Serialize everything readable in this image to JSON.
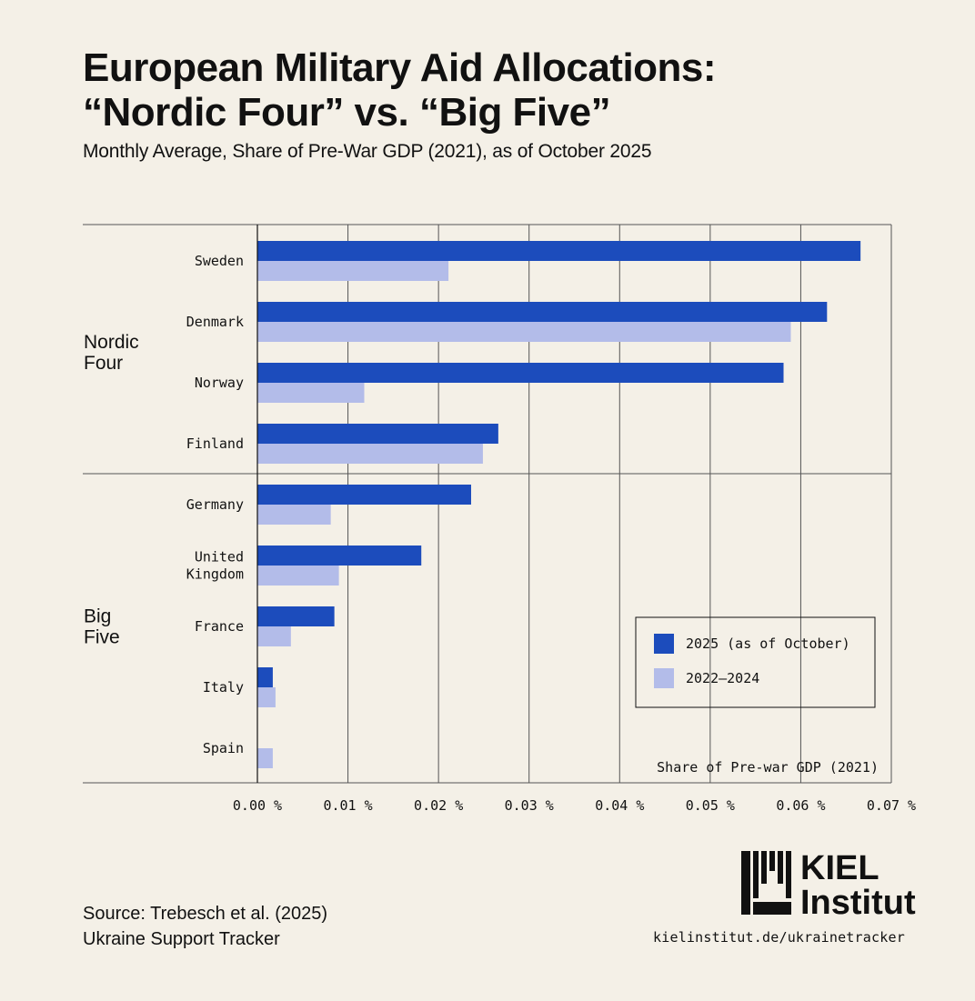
{
  "header": {
    "title_line1": "European Military Aid Allocations:",
    "title_line2": "“Nordic Four” vs. “Big Five”",
    "subtitle": "Monthly Average, Share of Pre-War GDP (2021), as of October 2025"
  },
  "chart_data": {
    "type": "bar",
    "orientation": "horizontal",
    "groups": [
      {
        "name": "Nordic Four",
        "label_lines": [
          "Nordic",
          "Four"
        ],
        "categories": [
          "Sweden",
          "Denmark",
          "Norway",
          "Finland"
        ]
      },
      {
        "name": "Big Five",
        "label_lines": [
          "Big",
          "Five"
        ],
        "categories": [
          "Germany",
          "United Kingdom",
          "France",
          "Italy",
          "Spain"
        ]
      }
    ],
    "categories": [
      "Sweden",
      "Denmark",
      "Norway",
      "Finland",
      "Germany",
      "United Kingdom",
      "France",
      "Italy",
      "Spain"
    ],
    "category_label_lines": [
      [
        "Sweden"
      ],
      [
        "Denmark"
      ],
      [
        "Norway"
      ],
      [
        "Finland"
      ],
      [
        "Germany"
      ],
      [
        "United",
        "Kingdom"
      ],
      [
        "France"
      ],
      [
        "Italy"
      ],
      [
        "Spain"
      ]
    ],
    "series": [
      {
        "name": "2025 (as of October)",
        "color": "#1c4cbc",
        "values": [
          0.0666,
          0.0629,
          0.0581,
          0.0266,
          0.0236,
          0.0181,
          0.0085,
          0.0017,
          0.0
        ]
      },
      {
        "name": "2022–2024",
        "color": "#b3bce9",
        "values": [
          0.0211,
          0.0589,
          0.0118,
          0.0249,
          0.0081,
          0.009,
          0.0037,
          0.002,
          0.0017
        ]
      }
    ],
    "xlim": [
      0,
      0.07
    ],
    "xticks": [
      0,
      0.01,
      0.02,
      0.03,
      0.04,
      0.05,
      0.06,
      0.07
    ],
    "xtick_labels": [
      "0.00 %",
      "0.01 %",
      "0.02 %",
      "0.03 %",
      "0.04 %",
      "0.05 %",
      "0.06 %",
      "0.07 %"
    ],
    "xlabel": "Share of Pre-war GDP (2021)",
    "grid": "vertical",
    "legend_position": "bottom-right"
  },
  "footer": {
    "source_line1": "Source: Trebesch et al. (2025)",
    "source_line2": "Ukraine Support Tracker",
    "logo_line1": "KIEL",
    "logo_line2": "Institut",
    "url": "kielinstitut.de/ukrainetracker"
  }
}
